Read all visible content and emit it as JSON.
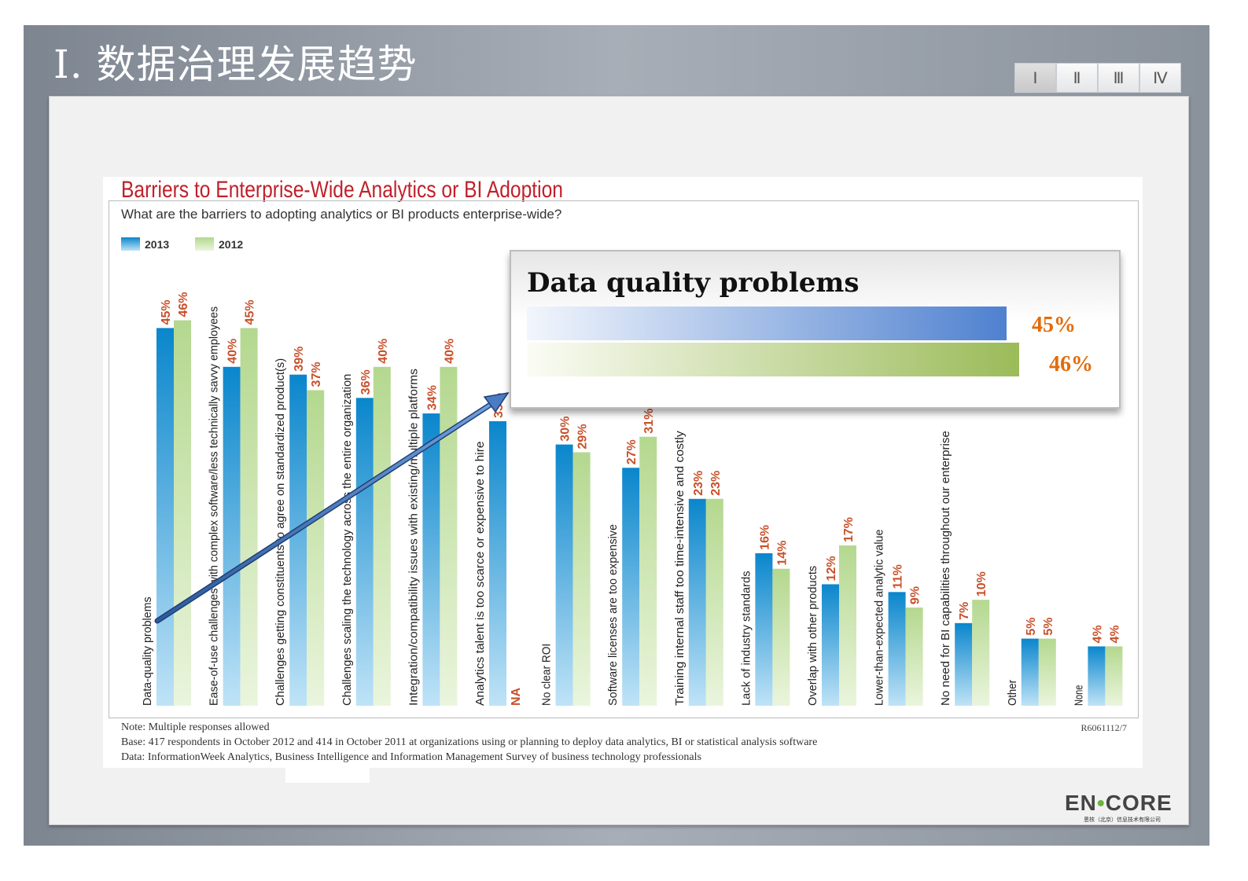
{
  "slide": {
    "title": "I. 数据治理发展趋势",
    "tabs": [
      "Ⅰ",
      "Ⅱ",
      "Ⅲ",
      "Ⅳ"
    ],
    "active_tab": 0,
    "logo": {
      "text_left": "EN",
      "text_right": "CORE",
      "subtitle": "恩核（北京）信息技术有限公司"
    }
  },
  "popup": {
    "title": "Data quality problems",
    "bars": [
      {
        "label": "45%",
        "value": 45,
        "color": "#4f81d0"
      },
      {
        "label": "46%",
        "value": 46,
        "color": "#9bbb59"
      }
    ]
  },
  "chart_data": {
    "type": "bar",
    "title": "Barriers to Enterprise-Wide Analytics or BI Adoption",
    "subtitle": "What are the barriers to adopting analytics or BI products enterprise-wide?",
    "legend": {
      "placement": "top-left"
    },
    "colors": {
      "2013": "#0a86cc",
      "2012": "#b4d88f",
      "labels": "#c8502a"
    },
    "categories": [
      "Data-quality problems",
      "Ease-of-use challenges with complex software/less technically savvy employees",
      "Challenges getting constituents to agree on standardized product(s)",
      "Challenges scaling the technology across the entire organization",
      "Integration/compatibility issues with existing/multiple platforms",
      "Analytics talent is too scarce or expensive to hire",
      "No clear ROI",
      "Software licenses are too expensive",
      "Training internal staff too time-intensive and costly",
      "Lack of industry standards",
      "Overlap with other products",
      "Lower-than-expected analytic value",
      "No need for BI capabilities throughout our enterprise",
      "Other",
      "None"
    ],
    "series": [
      {
        "name": "2013",
        "values": [
          45,
          40,
          39,
          36,
          34,
          33,
          30,
          27,
          23,
          16,
          12,
          11,
          7,
          5,
          4
        ]
      },
      {
        "name": "2012",
        "values": [
          46,
          45,
          37,
          40,
          40,
          null,
          29,
          31,
          23,
          14,
          17,
          9,
          10,
          5,
          4
        ]
      }
    ],
    "na_label": "NA",
    "grid": false,
    "notes": [
      "Note: Multiple responses allowed",
      "Base: 417 respondents in October 2012 and 414 in October 2011 at organizations using or planning to deploy data analytics, BI or statistical analysis software",
      "Data: InformationWeek Analytics, Business Intelligence and Information Management Survey of business technology professionals"
    ],
    "code": "R6061112/7"
  }
}
